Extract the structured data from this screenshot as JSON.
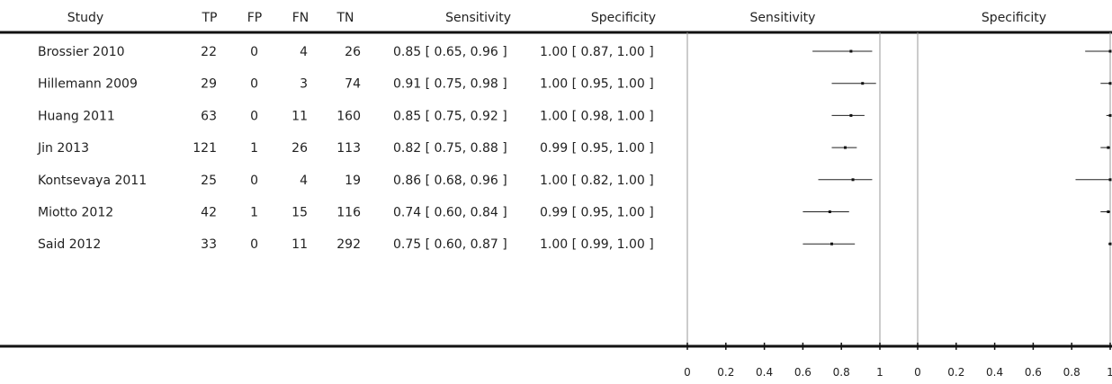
{
  "headers": {
    "study": "Study",
    "tp": "TP",
    "fp": "FP",
    "fn": "FN",
    "tn": "TN",
    "sensitivity": "Sensitivity",
    "specificity": "Specificity"
  },
  "chart_data": {
    "type": "forest",
    "panels": [
      {
        "title": "Sensitivity",
        "xlim": [
          0,
          1
        ],
        "ticks": [
          "0",
          "0.2",
          "0.4",
          "0.6",
          "0.8",
          "1"
        ]
      },
      {
        "title": "Specificity",
        "xlim": [
          0,
          1
        ],
        "ticks": [
          "0",
          "0.2",
          "0.4",
          "0.6",
          "0.8",
          "1"
        ]
      }
    ],
    "studies": [
      {
        "study": "Brossier 2010",
        "tp": "22",
        "fp": "0",
        "fn": "4",
        "tn": "26",
        "sens_text": "0.85 [ 0.65, 0.96 ]",
        "spec_text": "1.00 [ 0.87, 1.00 ]",
        "sens": 0.85,
        "sens_lo": 0.65,
        "sens_hi": 0.96,
        "spec": 1.0,
        "spec_lo": 0.87,
        "spec_hi": 1.0
      },
      {
        "study": "Hillemann 2009",
        "tp": "29",
        "fp": "0",
        "fn": "3",
        "tn": "74",
        "sens_text": "0.91 [ 0.75, 0.98 ]",
        "spec_text": "1.00 [ 0.95, 1.00 ]",
        "sens": 0.91,
        "sens_lo": 0.75,
        "sens_hi": 0.98,
        "spec": 1.0,
        "spec_lo": 0.95,
        "spec_hi": 1.0
      },
      {
        "study": "Huang 2011",
        "tp": "63",
        "fp": "0",
        "fn": "11",
        "tn": "160",
        "sens_text": "0.85 [ 0.75, 0.92 ]",
        "spec_text": "1.00 [ 0.98, 1.00 ]",
        "sens": 0.85,
        "sens_lo": 0.75,
        "sens_hi": 0.92,
        "spec": 1.0,
        "spec_lo": 0.98,
        "spec_hi": 1.0
      },
      {
        "study": "Jin 2013",
        "tp": "121",
        "fp": "1",
        "fn": "26",
        "tn": "113",
        "sens_text": "0.82 [ 0.75, 0.88 ]",
        "spec_text": "0.99 [ 0.95, 1.00 ]",
        "sens": 0.82,
        "sens_lo": 0.75,
        "sens_hi": 0.88,
        "spec": 0.99,
        "spec_lo": 0.95,
        "spec_hi": 1.0
      },
      {
        "study": "Kontsevaya 2011",
        "tp": "25",
        "fp": "0",
        "fn": "4",
        "tn": "19",
        "sens_text": "0.86 [ 0.68, 0.96 ]",
        "spec_text": "1.00 [ 0.82, 1.00 ]",
        "sens": 0.86,
        "sens_lo": 0.68,
        "sens_hi": 0.96,
        "spec": 1.0,
        "spec_lo": 0.82,
        "spec_hi": 1.0
      },
      {
        "study": "Miotto 2012",
        "tp": "42",
        "fp": "1",
        "fn": "15",
        "tn": "116",
        "sens_text": "0.74 [ 0.60, 0.84 ]",
        "spec_text": "0.99 [ 0.95, 1.00 ]",
        "sens": 0.74,
        "sens_lo": 0.6,
        "sens_hi": 0.84,
        "spec": 0.99,
        "spec_lo": 0.95,
        "spec_hi": 1.0
      },
      {
        "study": "Said 2012",
        "tp": "33",
        "fp": "0",
        "fn": "11",
        "tn": "292",
        "sens_text": "0.75 [ 0.60, 0.87 ]",
        "spec_text": "1.00 [ 0.99, 1.00 ]",
        "sens": 0.75,
        "sens_lo": 0.6,
        "sens_hi": 0.87,
        "spec": 1.0,
        "spec_lo": 0.99,
        "spec_hi": 1.0
      }
    ]
  }
}
